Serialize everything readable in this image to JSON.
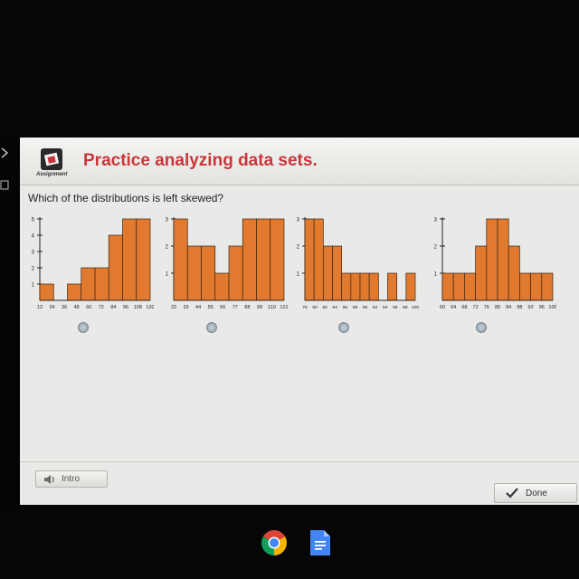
{
  "header": {
    "title": "Practice analyzing data sets.",
    "logo_caption": "Assignment"
  },
  "question": "Which of the distributions is left skewed?",
  "buttons": {
    "intro_label": "Intro",
    "done_label": "Done"
  },
  "colors": {
    "bar": "#e17a2e",
    "bar_stroke": "#3b2412",
    "title": "#c8373a"
  },
  "chart_data": [
    {
      "type": "bar",
      "x_ticks": [
        "12",
        "24",
        "36",
        "48",
        "60",
        "72",
        "84",
        "96",
        "108",
        "120"
      ],
      "values": [
        1,
        0,
        1,
        2,
        2,
        4,
        5,
        5
      ],
      "y_ticks": [
        "1",
        "2",
        "3",
        "4",
        "5"
      ],
      "ylim": [
        0,
        5
      ]
    },
    {
      "type": "bar",
      "x_ticks": [
        "22",
        "33",
        "44",
        "55",
        "66",
        "77",
        "88",
        "99",
        "110",
        "121"
      ],
      "values": [
        3,
        2,
        2,
        1,
        2,
        3,
        3,
        3
      ],
      "y_ticks": [
        "1",
        "2",
        "3"
      ],
      "ylim": [
        0,
        3
      ]
    },
    {
      "type": "bar",
      "x_ticks": [
        "78",
        "80",
        "82",
        "84",
        "86",
        "88",
        "90",
        "92",
        "94",
        "96",
        "98",
        "100"
      ],
      "values": [
        3,
        3,
        2,
        2,
        1,
        1,
        1,
        1,
        0,
        1,
        0,
        1
      ],
      "y_ticks": [
        "1",
        "2",
        "3"
      ],
      "ylim": [
        0,
        3
      ]
    },
    {
      "type": "bar",
      "x_ticks": [
        "60",
        "64",
        "68",
        "72",
        "76",
        "80",
        "84",
        "88",
        "92",
        "96",
        "100"
      ],
      "values": [
        1,
        1,
        1,
        2,
        3,
        3,
        2,
        1,
        1,
        1
      ],
      "y_ticks": [
        "1",
        "2",
        "3"
      ],
      "ylim": [
        0,
        3
      ]
    }
  ]
}
